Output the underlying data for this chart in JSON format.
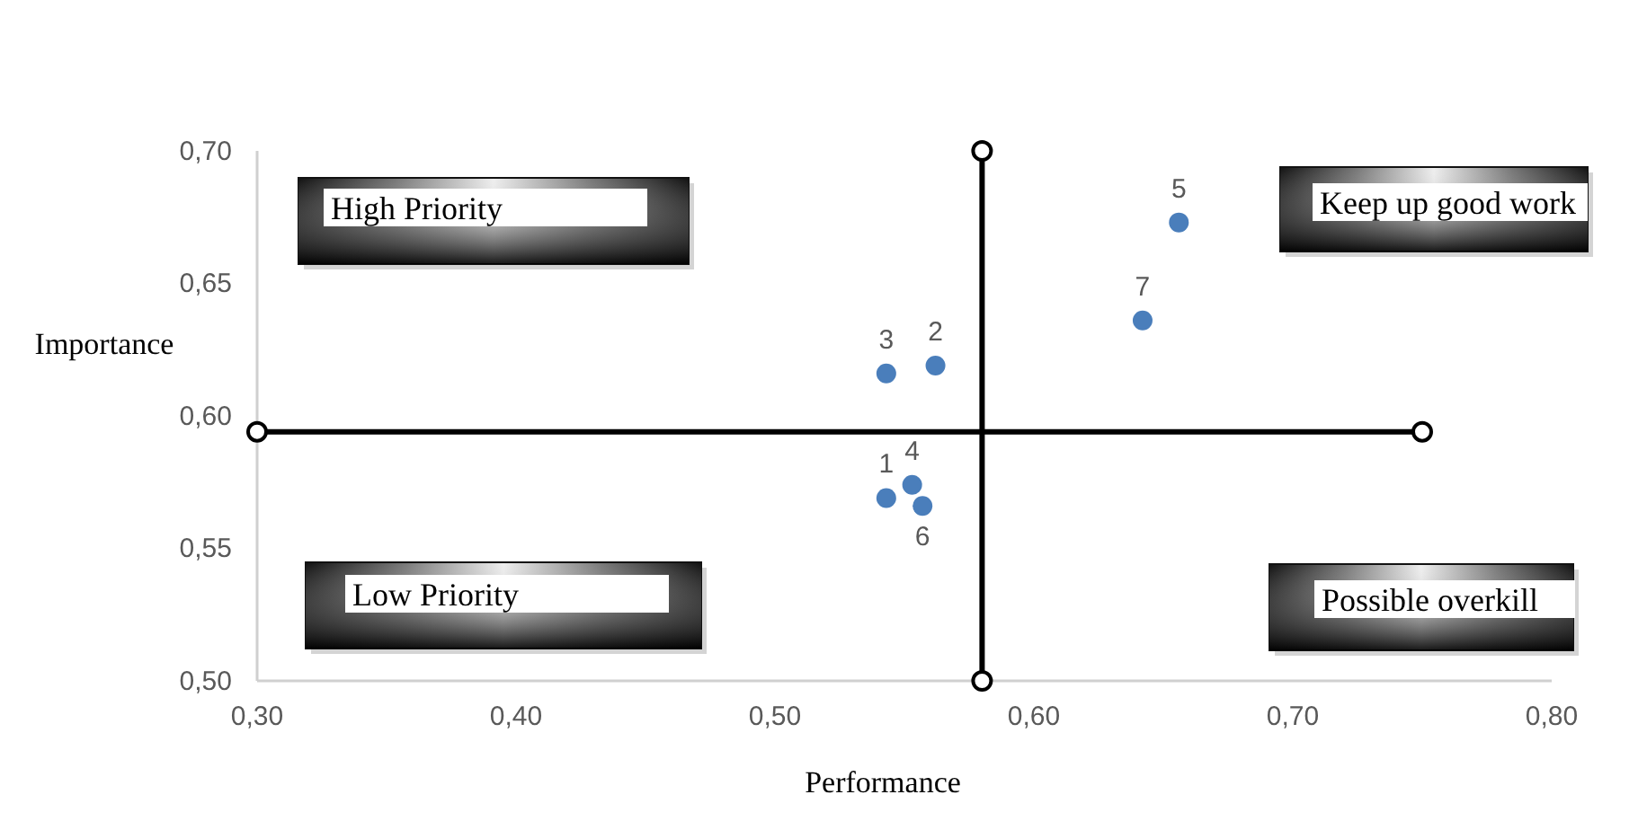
{
  "chart_data": {
    "type": "scatter",
    "xlabel": "Performance",
    "ylabel": "Importance",
    "x": [
      0.543,
      0.562,
      0.543,
      0.553,
      0.656,
      0.557,
      0.642
    ],
    "series": [
      {
        "color": "#4a7ebb",
        "values": [
          0.569,
          0.619,
          0.616,
          0.574,
          0.673,
          0.566,
          0.636
        ]
      }
    ],
    "xlim": [
      0.3,
      0.8
    ],
    "ylim": [
      0.5,
      0.7
    ],
    "xticks": [
      {
        "value": 0.3,
        "label": "0,30"
      },
      {
        "value": 0.4,
        "label": "0,40"
      },
      {
        "value": 0.5,
        "label": "0,50"
      },
      {
        "value": 0.6,
        "label": "0,60"
      },
      {
        "value": 0.7,
        "label": "0,70"
      },
      {
        "value": 0.8,
        "label": "0,80"
      }
    ],
    "yticks": [
      {
        "value": 0.5,
        "label": "0,50"
      },
      {
        "value": 0.55,
        "label": "0,55"
      },
      {
        "value": 0.6,
        "label": "0,60"
      },
      {
        "value": 0.65,
        "label": "0,65"
      },
      {
        "value": 0.7,
        "label": "0,70"
      }
    ],
    "ref_lines": [
      {
        "axis": "x",
        "value": 0.58,
        "color": "#000000"
      },
      {
        "axis": "y",
        "value": 0.594,
        "color": "#000000"
      }
    ],
    "annotations": [
      "High Priority",
      "Keep up good work",
      "Low Priority",
      "Possible overkill",
      {
        "text": "1",
        "x": 0.543,
        "y": 0.569
      },
      {
        "text": "2",
        "x": 0.562,
        "y": 0.619
      },
      {
        "text": "3",
        "x": 0.543,
        "y": 0.616
      },
      {
        "text": "4",
        "x": 0.553,
        "y": 0.574
      },
      {
        "text": "5",
        "x": 0.656,
        "y": 0.673
      },
      {
        "text": "6",
        "x": 0.557,
        "y": 0.566
      },
      {
        "text": "7",
        "x": 0.642,
        "y": 0.636
      }
    ],
    "marker": "circle",
    "grid": false
  }
}
